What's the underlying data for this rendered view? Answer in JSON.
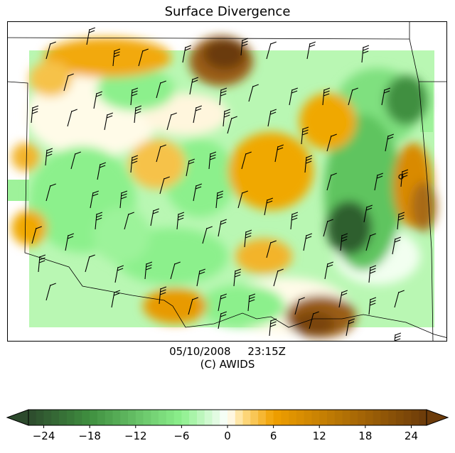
{
  "title": "Surface Divergence",
  "valid_time": {
    "date": "05/10/2008",
    "time": "23:15Z"
  },
  "credit": "(C) AWIDS",
  "colorbar": {
    "ticks": [
      "−24",
      "−18",
      "−12",
      "−6",
      "0",
      "6",
      "12",
      "18",
      "24"
    ],
    "tick_values": [
      -24,
      -18,
      -12,
      -6,
      0,
      6,
      12,
      18,
      24
    ],
    "range": [
      -26,
      26
    ],
    "extend": "both",
    "colors": {
      "neg_strong": "#2d4a2d",
      "neg_mid": "#3f8f3f",
      "neg_light": "#8cf08c",
      "neutral": "#ffffff",
      "pos_light": "#ffdd88",
      "pos_mid": "#f0a000",
      "pos_strong": "#6b3a0a"
    }
  },
  "map": {
    "divergence_colormap": "green (convergence) to white to orange-brown (divergence)",
    "wind_barbs": "black station wind barbs"
  }
}
